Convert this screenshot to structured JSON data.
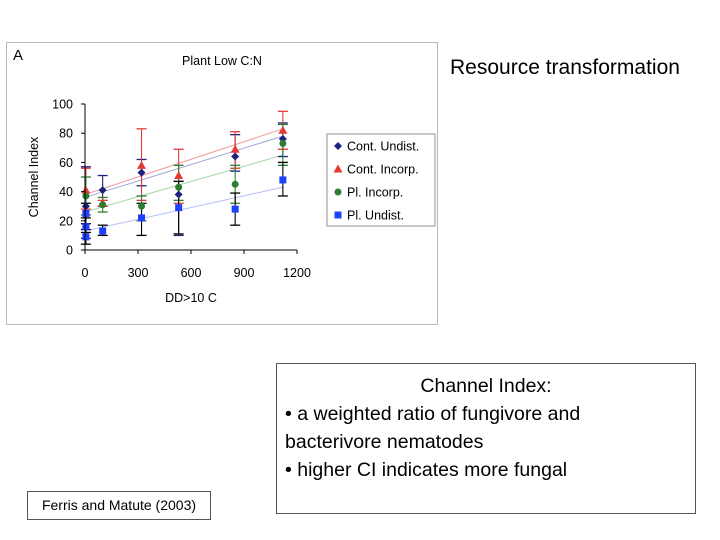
{
  "slide": {
    "title": "Resource transformation",
    "definition": {
      "heading": "Channel Index:",
      "lines": [
        "• a weighted ratio of fungivore and",
        "bacterivore nematodes",
        "• higher CI indicates more fungal"
      ]
    },
    "citation": "Ferris and Matute (2003)"
  },
  "chart_data": {
    "type": "scatter",
    "panel_label": "A",
    "title": "Plant Low C:N",
    "xlabel": "DD>10 C",
    "ylabel": "Channel Index",
    "xlim": [
      0,
      1200
    ],
    "ylim": [
      0,
      100
    ],
    "x_ticks": [
      0,
      300,
      600,
      900,
      1200
    ],
    "y_ticks": [
      0,
      20,
      40,
      60,
      80,
      100
    ],
    "grid": false,
    "legend_position": "right",
    "error_bars": true,
    "trendlines": "linear",
    "series": [
      {
        "name": "Cont. Undist.",
        "marker": "diamond",
        "color": "#1a237e",
        "trend_color": "#9fa8da",
        "points": [
          {
            "x": 5,
            "y": 30,
            "lo": 8,
            "hi": 57
          },
          {
            "x": 100,
            "y": 41,
            "lo": 30,
            "hi": 51
          },
          {
            "x": 320,
            "y": 53,
            "lo": 44,
            "hi": 62
          },
          {
            "x": 530,
            "y": 38,
            "lo": 10,
            "hi": 47
          },
          {
            "x": 850,
            "y": 64,
            "lo": 54,
            "hi": 79
          },
          {
            "x": 1120,
            "y": 76,
            "lo": 64,
            "hi": 87
          }
        ],
        "trend": [
          [
            0,
            36
          ],
          [
            1120,
            78
          ]
        ]
      },
      {
        "name": "Cont. Incorp.",
        "marker": "triangle",
        "color": "#e53935",
        "trend_color": "#ef9a9a",
        "points": [
          {
            "x": 5,
            "y": 41,
            "lo": 28,
            "hi": 56
          },
          {
            "x": 100,
            "y": 32,
            "lo": 30,
            "hi": 34
          },
          {
            "x": 320,
            "y": 58,
            "lo": 34,
            "hi": 83
          },
          {
            "x": 530,
            "y": 51,
            "lo": 32,
            "hi": 69
          },
          {
            "x": 850,
            "y": 69,
            "lo": 56,
            "hi": 81
          },
          {
            "x": 1120,
            "y": 82,
            "lo": 69,
            "hi": 95
          }
        ],
        "trend": [
          [
            0,
            38
          ],
          [
            1120,
            83
          ]
        ]
      },
      {
        "name": "Pl. Incorp.",
        "marker": "circle",
        "color": "#2e7d32",
        "trend_color": "#a5d6a7",
        "points": [
          {
            "x": 5,
            "y": 37,
            "lo": 24,
            "hi": 50
          },
          {
            "x": 100,
            "y": 31,
            "lo": 26,
            "hi": 36
          },
          {
            "x": 320,
            "y": 30,
            "lo": 20,
            "hi": 37
          },
          {
            "x": 530,
            "y": 43,
            "lo": 34,
            "hi": 58
          },
          {
            "x": 850,
            "y": 45,
            "lo": 32,
            "hi": 58
          },
          {
            "x": 1120,
            "y": 73,
            "lo": 58,
            "hi": 86
          }
        ],
        "trend": [
          [
            0,
            26
          ],
          [
            1120,
            65
          ]
        ]
      },
      {
        "name": "Pl. Undist.",
        "marker": "square",
        "color": "#1e40ff",
        "trend_color": "#b3bdf5",
        "points": [
          {
            "x": 5,
            "y": 9,
            "lo": 4,
            "hi": 14
          },
          {
            "x": 5,
            "y": 16,
            "lo": 12,
            "hi": 22
          },
          {
            "x": 5,
            "y": 25,
            "lo": 18,
            "hi": 32
          },
          {
            "x": 100,
            "y": 13,
            "lo": 10,
            "hi": 17
          },
          {
            "x": 320,
            "y": 22,
            "lo": 10,
            "hi": 32
          },
          {
            "x": 530,
            "y": 29,
            "lo": 11,
            "hi": 47
          },
          {
            "x": 850,
            "y": 28,
            "lo": 17,
            "hi": 39
          },
          {
            "x": 1120,
            "y": 48,
            "lo": 37,
            "hi": 60
          }
        ],
        "trend": [
          [
            0,
            13
          ],
          [
            1120,
            43
          ]
        ]
      }
    ]
  }
}
